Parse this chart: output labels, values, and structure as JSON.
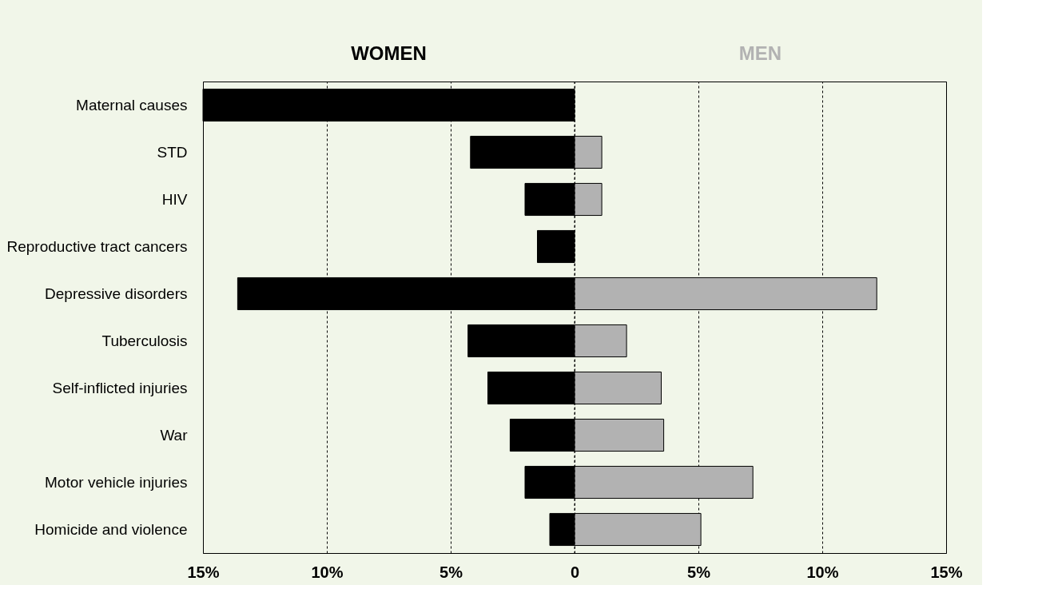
{
  "chart_data": {
    "type": "bar",
    "orientation": "horizontal",
    "stacked": true,
    "categories": [
      "Maternal causes",
      "STD",
      "HIV",
      "Reproductive tract cancers",
      "Depressive disorders",
      "Tuberculosis",
      "Self-inflicted injuries",
      "War",
      "Motor vehicle injuries",
      "Homicide and violence"
    ],
    "series": [
      {
        "name": "WOMEN",
        "color": "#000000",
        "values": [
          -15.0,
          -4.2,
          -2.0,
          -1.5,
          -13.6,
          -4.3,
          -3.5,
          -2.6,
          -2.0,
          -1.0
        ]
      },
      {
        "name": "MEN",
        "color": "#b2b2b2",
        "values": [
          null,
          1.1,
          1.1,
          null,
          12.2,
          2.1,
          3.5,
          3.6,
          7.2,
          5.1
        ]
      }
    ],
    "xlim": [
      -15,
      15
    ],
    "xticks": [
      {
        "value": -15,
        "label": "15%"
      },
      {
        "value": -10,
        "label": "10%"
      },
      {
        "value": -5,
        "label": "5%"
      },
      0,
      {
        "value": 5,
        "label": "5%"
      },
      {
        "value": 10,
        "label": "10%"
      },
      {
        "value": 15,
        "label": "15%"
      }
    ],
    "grid": "x"
  }
}
